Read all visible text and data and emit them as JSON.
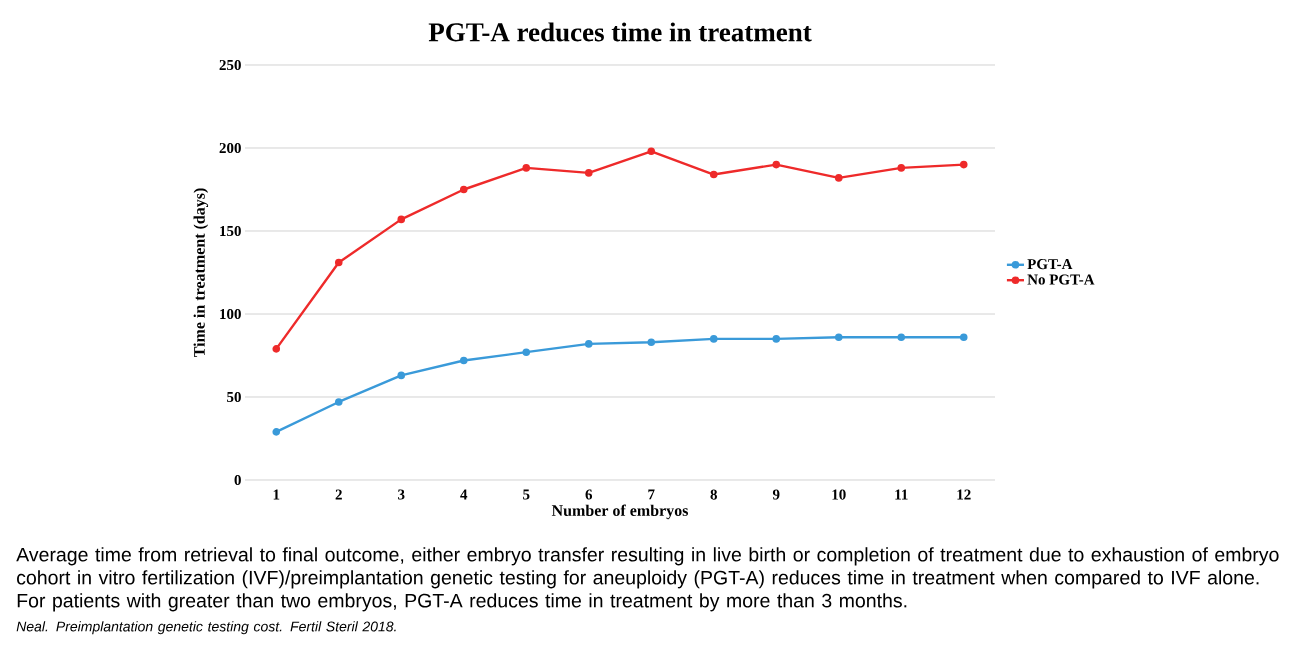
{
  "chart_data": {
    "type": "line",
    "title": "PGT-A reduces time in treatment",
    "xlabel": "Number of embryos",
    "ylabel": "Time in treatment (days)",
    "categories": [
      "1",
      "2",
      "3",
      "4",
      "5",
      "6",
      "7",
      "8",
      "9",
      "10",
      "11",
      "12"
    ],
    "series": [
      {
        "name": "PGT-A",
        "color": "#3a9ad9",
        "values": [
          29,
          47,
          63,
          72,
          77,
          82,
          83,
          85,
          85,
          86,
          86,
          86
        ]
      },
      {
        "name": "No PGT-A",
        "color": "#ee2a2a",
        "values": [
          79,
          131,
          157,
          175,
          188,
          185,
          198,
          184,
          190,
          182,
          188,
          190
        ]
      }
    ],
    "ylim": [
      0,
      250
    ],
    "yticks": [
      0,
      50,
      100,
      150,
      200,
      250
    ],
    "grid": "y",
    "legend": "right",
    "marker": "circle",
    "line_style": "solid",
    "annotations": [
      "Average time from retrieval to final outcome, either embryo transfer resulting in live birth or completion of treatment due to exhaustion of embryo cohort in vitro fertilization (IVF)/preimplantation genetic testing for aneuploidy (PGT-A) reduces time in treatment when compared to IVF alone. For patients with greater than two embryos, PGT-A reduces time in treatment by more than 3 months.",
      "*Neal. Preimplantation genetic testing cost. Fertil Steril 2018.*"
    ]
  }
}
